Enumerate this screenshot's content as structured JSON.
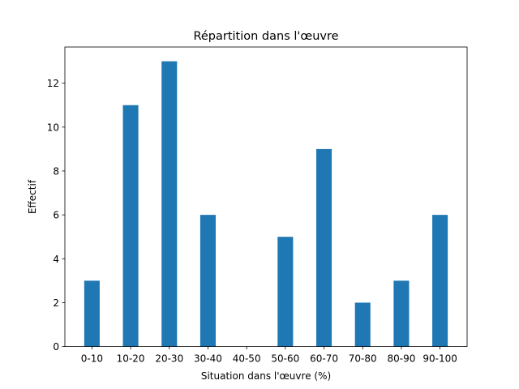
{
  "chart_data": {
    "type": "bar",
    "title": "Répartition dans l'œuvre",
    "xlabel": "Situation dans l'œuvre (%)",
    "ylabel": "Effectif",
    "categories": [
      "0-10",
      "10-20",
      "20-30",
      "30-40",
      "40-50",
      "50-60",
      "60-70",
      "70-80",
      "80-90",
      "90-100"
    ],
    "values": [
      3,
      11,
      13,
      6,
      0,
      5,
      9,
      2,
      3,
      6
    ],
    "ylim": [
      0,
      13.65
    ],
    "yticks": [
      0,
      2,
      4,
      6,
      8,
      10,
      12
    ],
    "grid": false,
    "bar_color": "#1f77b4"
  }
}
